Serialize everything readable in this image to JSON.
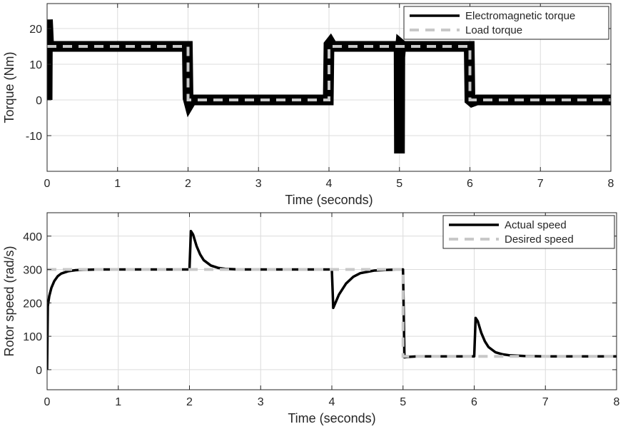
{
  "chart_data": [
    {
      "type": "line",
      "xlabel": "Time (seconds)",
      "ylabel": "Torque (Nm)",
      "xlim": [
        0,
        8
      ],
      "ylim": [
        -20,
        27
      ],
      "xticks": [
        0,
        1,
        2,
        3,
        4,
        5,
        6,
        7,
        8
      ],
      "yticks": [
        -10,
        0,
        10,
        20
      ],
      "grid": true,
      "legend_position": "top-right",
      "series": [
        {
          "name": "Electromagnetic torque",
          "color": "#000000",
          "style": "solid-thick",
          "x": [
            0,
            0.005,
            0.02,
            0.05,
            1.99,
            2.0,
            2.02,
            2.05,
            3.99,
            4.0,
            4.02,
            4.05,
            4.995,
            5.0,
            5.005,
            5.02,
            5.05,
            5.99,
            6.0,
            6.03,
            6.1,
            8.0
          ],
          "y": [
            0,
            22.5,
            16,
            15,
            15,
            0.5,
            -1,
            0,
            0,
            15.5,
            16,
            15,
            15,
            -15,
            12,
            15.5,
            15,
            15,
            0,
            -0.5,
            0,
            0
          ],
          "noise_band": 1.2
        },
        {
          "name": "Load torque",
          "color": "#c8c8c8",
          "style": "dashed",
          "x": [
            0,
            2,
            2,
            4,
            4,
            6,
            6,
            8
          ],
          "y": [
            15,
            15,
            0,
            0,
            15,
            15,
            0,
            0
          ]
        }
      ]
    },
    {
      "type": "line",
      "xlabel": "Time (seconds)",
      "ylabel": "Rotor speed (rad/s)",
      "xlim": [
        0,
        8
      ],
      "ylim": [
        -60,
        470
      ],
      "xticks": [
        0,
        1,
        2,
        3,
        4,
        5,
        6,
        7,
        8
      ],
      "yticks": [
        0,
        100,
        200,
        300,
        400
      ],
      "grid": true,
      "legend_position": "top-right",
      "series": [
        {
          "name": "Actual speed",
          "color": "#000000",
          "style": "solid-thick",
          "x": [
            0,
            0.01,
            0.03,
            0.06,
            0.1,
            0.15,
            0.2,
            0.3,
            0.4,
            0.5,
            0.7,
            1.0,
            2.0,
            2.02,
            2.05,
            2.1,
            2.15,
            2.2,
            2.3,
            2.4,
            2.5,
            2.7,
            3.0,
            4.0,
            4.02,
            4.05,
            4.1,
            4.2,
            4.3,
            4.4,
            4.6,
            4.8,
            5.0,
            5.02,
            5.05,
            5.2,
            5.5,
            6.0,
            6.02,
            6.05,
            6.1,
            6.15,
            6.2,
            6.3,
            6.4,
            6.5,
            6.7,
            7.0,
            8.0
          ],
          "y": [
            0,
            190,
            220,
            245,
            265,
            280,
            288,
            295,
            298,
            299,
            300,
            300,
            300,
            415,
            405,
            370,
            345,
            328,
            312,
            305,
            302,
            300,
            300,
            300,
            185,
            200,
            225,
            258,
            278,
            289,
            297,
            299,
            300,
            37,
            38,
            40,
            40,
            40,
            155,
            145,
            110,
            85,
            68,
            52,
            46,
            43,
            41,
            40,
            40
          ]
        },
        {
          "name": "Desired speed",
          "color": "#c8c8c8",
          "style": "dashed",
          "x": [
            0,
            5,
            5,
            8
          ],
          "y": [
            300,
            300,
            40,
            40
          ]
        }
      ]
    }
  ]
}
